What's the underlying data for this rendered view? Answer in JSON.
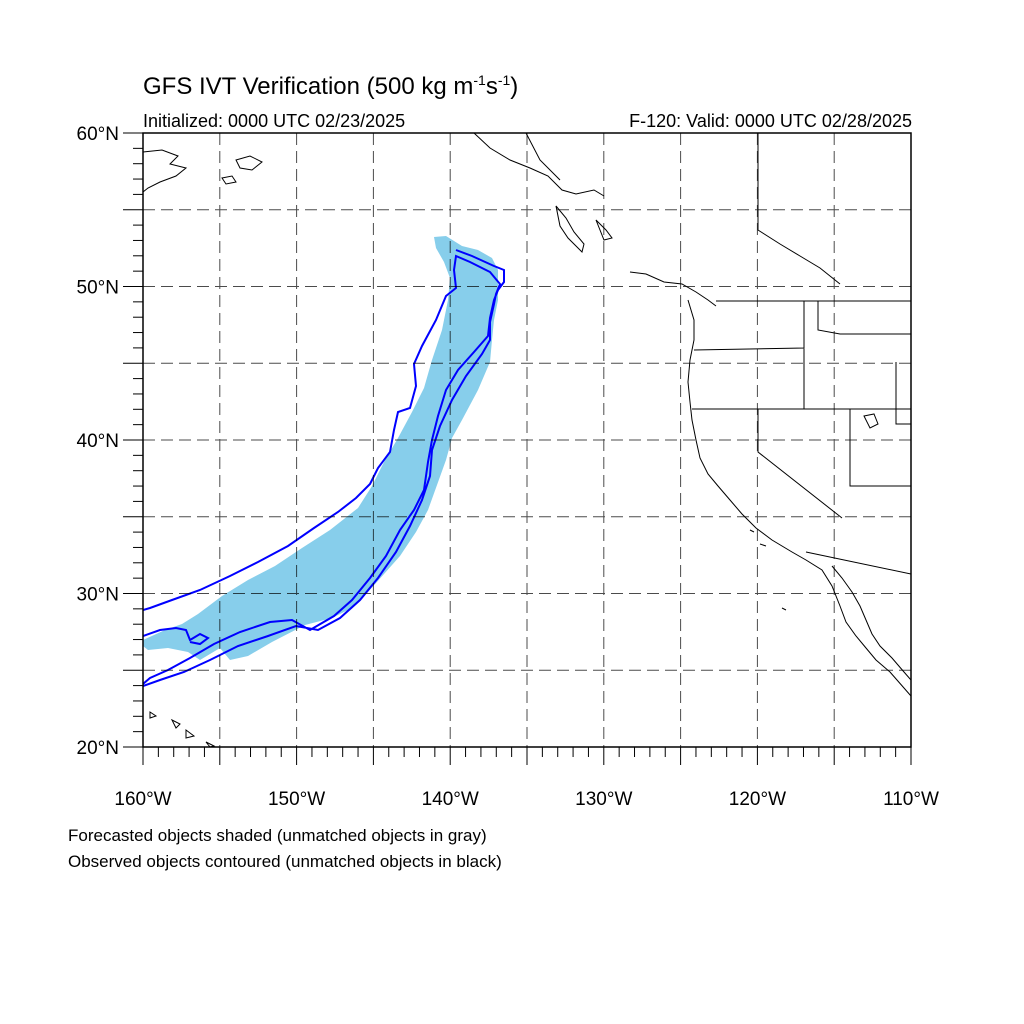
{
  "header": {
    "title_prefix": "GFS IVT Verification (500 kg m",
    "title_exp1": "-1",
    "title_mid": "s",
    "title_exp2": "-1",
    "title_suffix": ")",
    "initialized": "Initialized: 0000 UTC 02/23/2025",
    "valid": "F-120: Valid: 0000 UTC 02/28/2025"
  },
  "map": {
    "lon_range": [
      -160,
      -110
    ],
    "lat_range": [
      20,
      60
    ],
    "grid_style": "dashed",
    "lat_labels": [
      {
        "lat": 60,
        "text": "60°N"
      },
      {
        "lat": 50,
        "text": "50°N"
      },
      {
        "lat": 40,
        "text": "40°N"
      },
      {
        "lat": 30,
        "text": "30°N"
      },
      {
        "lat": 20,
        "text": "20°N"
      }
    ],
    "lon_labels": [
      {
        "lon": -160,
        "text": "160°W"
      },
      {
        "lon": -150,
        "text": "150°W"
      },
      {
        "lon": -140,
        "text": "140°W"
      },
      {
        "lon": -130,
        "text": "130°W"
      },
      {
        "lon": -120,
        "text": "120°W"
      },
      {
        "lon": -110,
        "text": "110°W"
      }
    ],
    "forecast_fill_color": "#87ceeb",
    "observed_contour_color": "#0000ff",
    "coastline_color": "#000000"
  },
  "notes": {
    "line1": "Forecasted objects shaded (unmatched objects in gray)",
    "line2": "Observed objects contoured (unmatched objects in black)"
  }
}
